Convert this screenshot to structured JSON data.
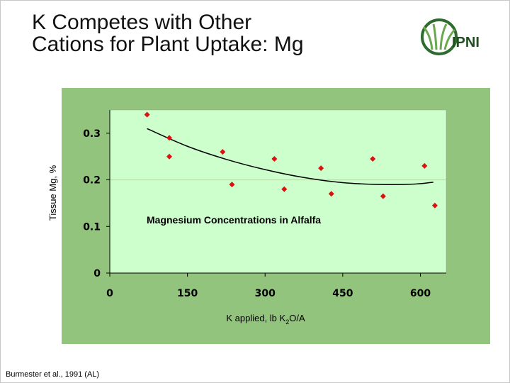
{
  "slide": {
    "title_line1": "K Competes with Other",
    "title_line2": "Cations for Plant Uptake: Mg",
    "logo_text": "IPNI",
    "citation": "Burmester et al., 1991 (AL)"
  },
  "colors": {
    "outer_background": "#93c47d",
    "plot_background": "#ccffcc",
    "marker": "#dd1111",
    "trendline": "#000000",
    "reference_line": "#f4c27a"
  },
  "chart_data": {
    "type": "scatter",
    "title": "Magnesium Concentrations in Alfalfa",
    "xlabel_main": "K applied,  lb K",
    "xlabel_sub": "2",
    "xlabel_tail": "O/A",
    "ylabel": "Tissue Mg, %",
    "xlim": [
      0,
      650
    ],
    "ylim": [
      0,
      0.35
    ],
    "x_ticks": [
      0,
      150,
      300,
      450,
      600
    ],
    "x_tick_labels": [
      "0",
      "150",
      "300",
      "450",
      "600"
    ],
    "y_ticks": [
      0,
      0.1,
      0.2,
      0.3
    ],
    "y_tick_labels": [
      "0",
      "0.1",
      "0.2",
      "0.3"
    ],
    "grid": false,
    "reference_line_y": 0.2,
    "points": [
      {
        "x": 72,
        "y": 0.34
      },
      {
        "x": 115,
        "y": 0.29
      },
      {
        "x": 115,
        "y": 0.25
      },
      {
        "x": 218,
        "y": 0.26
      },
      {
        "x": 236,
        "y": 0.19
      },
      {
        "x": 318,
        "y": 0.245
      },
      {
        "x": 337,
        "y": 0.18
      },
      {
        "x": 408,
        "y": 0.225
      },
      {
        "x": 428,
        "y": 0.17
      },
      {
        "x": 508,
        "y": 0.245
      },
      {
        "x": 528,
        "y": 0.165
      },
      {
        "x": 608,
        "y": 0.23
      },
      {
        "x": 628,
        "y": 0.145
      }
    ],
    "trendline": [
      {
        "x": 72,
        "y": 0.31
      },
      {
        "x": 150,
        "y": 0.272
      },
      {
        "x": 225,
        "y": 0.244
      },
      {
        "x": 300,
        "y": 0.222
      },
      {
        "x": 375,
        "y": 0.205
      },
      {
        "x": 450,
        "y": 0.194
      },
      {
        "x": 525,
        "y": 0.19
      },
      {
        "x": 590,
        "y": 0.191
      },
      {
        "x": 625,
        "y": 0.195
      }
    ]
  }
}
